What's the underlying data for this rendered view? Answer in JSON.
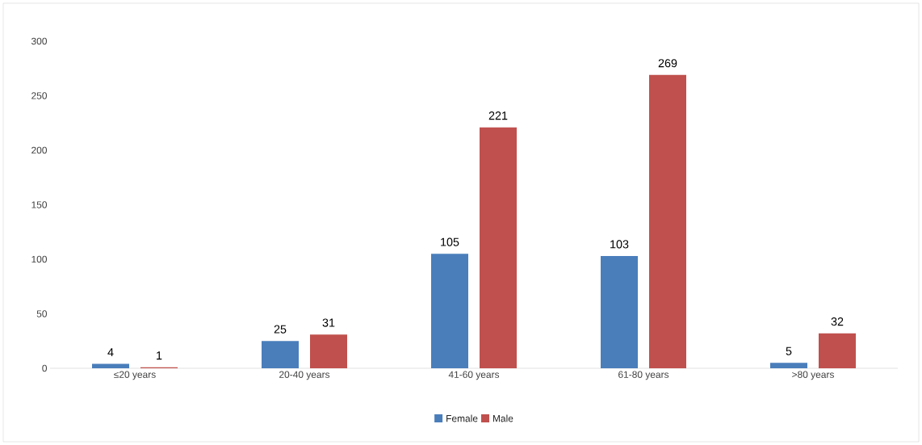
{
  "chart_data": {
    "type": "bar",
    "categories": [
      "≤20 years",
      "20-40 years",
      "41-60 years",
      "61-80 years",
      ">80 years"
    ],
    "series": [
      {
        "name": "Female",
        "color": "#4a7ebb",
        "values": [
          4,
          25,
          105,
          103,
          5
        ]
      },
      {
        "name": "Male",
        "color": "#c0504d",
        "values": [
          1,
          31,
          221,
          269,
          32
        ]
      }
    ],
    "ylim": [
      0,
      300
    ],
    "yticks": [
      0,
      50,
      100,
      150,
      200,
      250,
      300
    ],
    "data_labels": true,
    "legend": "bottom"
  }
}
